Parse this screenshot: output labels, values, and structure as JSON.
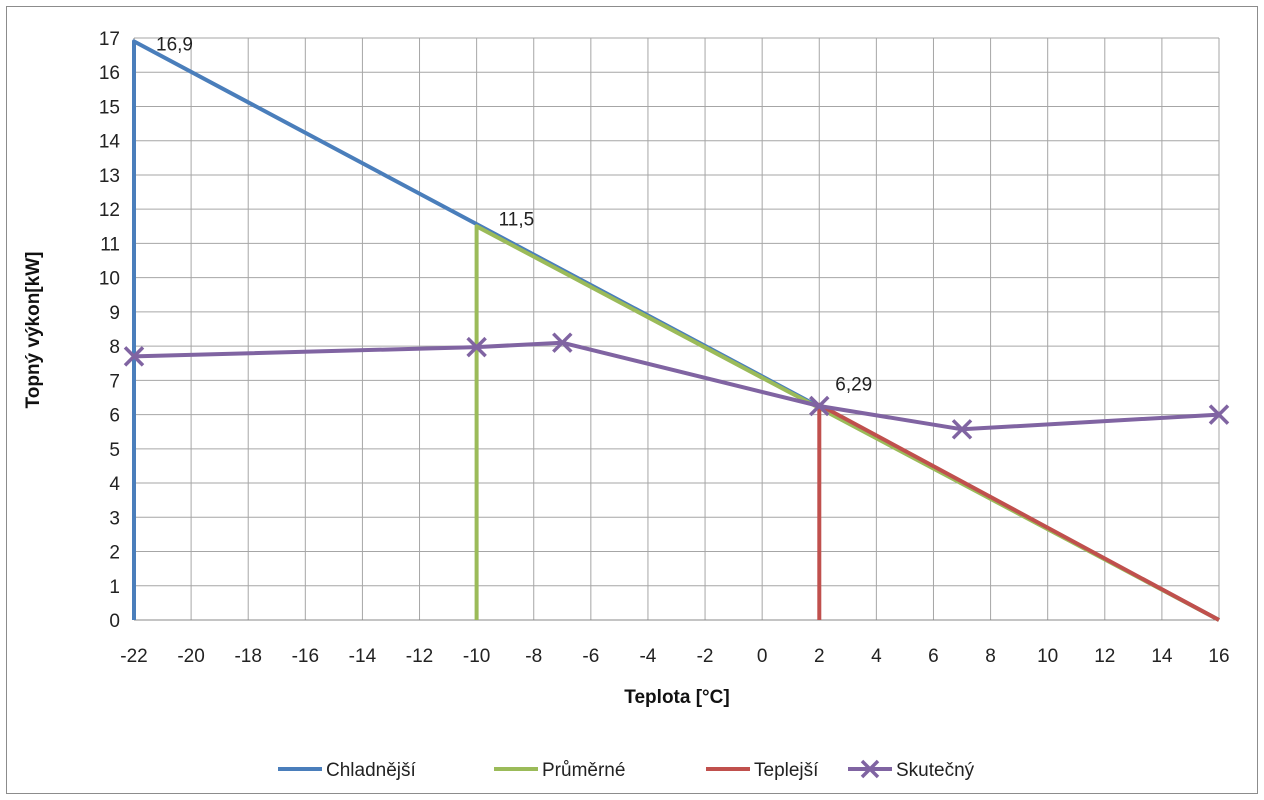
{
  "chart_data": {
    "type": "line",
    "xlabel": "Teplota [°C]",
    "ylabel": "Topný výkon[kW]",
    "xlim": [
      -22,
      16
    ],
    "ylim": [
      0,
      17
    ],
    "x_ticks": [
      "-22",
      "-20",
      "-18",
      "-16",
      "-14",
      "-12",
      "-10",
      "-8",
      "-6",
      "-4",
      "-2",
      "0",
      "2",
      "4",
      "6",
      "8",
      "10",
      "12",
      "14",
      "16"
    ],
    "y_ticks": [
      "0",
      "1",
      "2",
      "3",
      "4",
      "5",
      "6",
      "7",
      "8",
      "9",
      "10",
      "11",
      "12",
      "13",
      "14",
      "15",
      "16",
      "17"
    ],
    "grid": true,
    "legend_position": "bottom",
    "series": [
      {
        "name": "Chladnější",
        "color": "#4a7ebb",
        "marker": "none",
        "points": [
          [
            -22,
            0
          ],
          [
            -22,
            16.9
          ],
          [
            16,
            0
          ]
        ]
      },
      {
        "name": "Průměrné",
        "color": "#9bbb59",
        "marker": "none",
        "points": [
          [
            -10,
            0
          ],
          [
            -10,
            11.5
          ],
          [
            16,
            0
          ]
        ]
      },
      {
        "name": "Teplejší",
        "color": "#c0504d",
        "marker": "none",
        "points": [
          [
            2,
            0
          ],
          [
            2,
            6.29
          ],
          [
            16,
            0
          ]
        ]
      },
      {
        "name": "Skutečný",
        "color": "#8064a2",
        "marker": "x",
        "points": [
          [
            -22,
            7.7
          ],
          [
            -10,
            7.97
          ],
          [
            -7,
            8.1
          ],
          [
            2,
            6.25
          ],
          [
            7,
            5.57
          ],
          [
            16,
            6.0
          ]
        ]
      }
    ],
    "annotations": [
      {
        "x": -22,
        "y": 16.9,
        "text": "16,9"
      },
      {
        "x": -10,
        "y": 11.5,
        "text": "11,5"
      },
      {
        "x": 2,
        "y": 6.29,
        "text": "6,29"
      }
    ]
  }
}
